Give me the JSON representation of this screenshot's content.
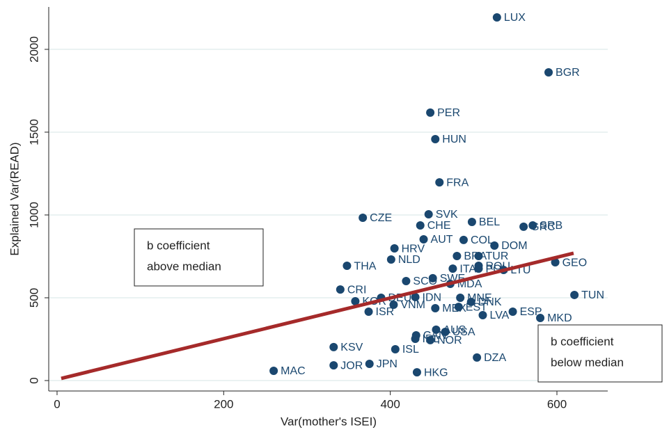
{
  "chart_data": {
    "type": "scatter",
    "x_label": "Var(mother's ISEI)",
    "y_label": "Explained Var(READ)",
    "xlim": [
      -10,
      661
    ],
    "ylim": [
      -63,
      2256
    ],
    "xticks": [
      0,
      200,
      400,
      600
    ],
    "yticks": [
      0,
      500,
      1000,
      1500,
      2000
    ],
    "grid": true,
    "color": "#1a476f",
    "point_labels": [
      "LUX",
      "BGR",
      "PER",
      "HUN",
      "FRA",
      "SVK",
      "CZE",
      "CHE",
      "BEL",
      "GRC",
      "SRB",
      "AUT",
      "COL",
      "DOM",
      "HRV",
      "NLD",
      "THA",
      "GEO",
      "BRA",
      "TUR",
      "ITA",
      "POL",
      "ROU",
      "LTU",
      "SWE",
      "SCO",
      "MDA",
      "CRI",
      "TUN",
      "KOR",
      "DEU",
      "IDN",
      "MNE",
      "DNK",
      "VNM",
      "MEX",
      "EST",
      "ISR",
      "ESP",
      "LVA",
      "MKD",
      "AUS",
      "USA",
      "CAN",
      "IRL",
      "NOR",
      "KSV",
      "ISL",
      "DZA",
      "JOR",
      "JPN",
      "MAC",
      "HKG"
    ],
    "x": [
      528,
      590,
      448,
      454,
      459,
      446,
      367,
      436,
      498,
      560,
      571,
      440,
      488,
      525,
      405,
      401,
      348,
      598,
      480,
      506,
      475,
      506,
      506,
      536,
      451,
      419,
      472,
      340,
      621,
      358,
      389,
      430,
      484,
      497,
      404,
      454,
      482,
      374,
      547,
      511,
      580,
      455,
      466,
      431,
      430,
      448,
      332,
      406,
      504,
      332,
      375,
      260,
      432
    ],
    "values": [
      2193,
      1861,
      1618,
      1458,
      1197,
      1004,
      983,
      937,
      958,
      929,
      937,
      853,
      849,
      815,
      798,
      731,
      693,
      714,
      752,
      752,
      676,
      676,
      693,
      668,
      618,
      601,
      584,
      550,
      517,
      479,
      500,
      504,
      500,
      475,
      458,
      437,
      445,
      416,
      416,
      395,
      378,
      307,
      294,
      273,
      252,
      244,
      202,
      189,
      139,
      92,
      101,
      59,
      50
    ],
    "fit_line": {
      "x": [
        5,
        620
      ],
      "y": [
        13,
        769
      ],
      "color": "#a52a2a"
    },
    "annotations": [
      [
        "b coefficient",
        "above median"
      ],
      [
        "b coefficient",
        "below median"
      ]
    ]
  }
}
